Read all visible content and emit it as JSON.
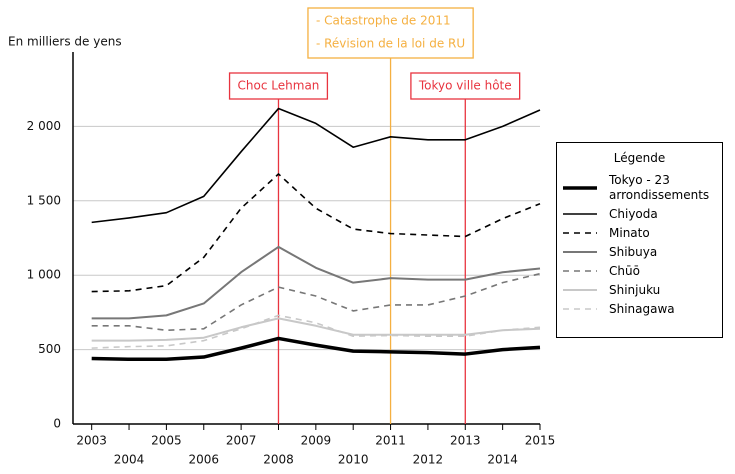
{
  "chart_data": {
    "type": "line",
    "y_label": "En milliers de yens",
    "x": [
      2003,
      2004,
      2005,
      2006,
      2007,
      2008,
      2009,
      2010,
      2011,
      2012,
      2013,
      2014,
      2015
    ],
    "series": [
      {
        "name": "Tokyo - 23 arrondissements",
        "color": "#000000",
        "width": 3.5,
        "dashed": false,
        "values": [
          440,
          435,
          435,
          450,
          510,
          575,
          530,
          490,
          485,
          480,
          470,
          500,
          515
        ]
      },
      {
        "name": "Chiyoda",
        "color": "#000000",
        "width": 1.6,
        "dashed": false,
        "values": [
          1355,
          1385,
          1420,
          1530,
          1830,
          2120,
          2020,
          1860,
          1930,
          1910,
          1910,
          2000,
          2110
        ]
      },
      {
        "name": "Minato",
        "color": "#000000",
        "width": 1.6,
        "dashed": true,
        "values": [
          890,
          895,
          930,
          1120,
          1450,
          1680,
          1450,
          1310,
          1280,
          1270,
          1260,
          1380,
          1480
        ]
      },
      {
        "name": "Shibuya",
        "color": "#777777",
        "width": 2,
        "dashed": false,
        "values": [
          710,
          710,
          730,
          810,
          1020,
          1190,
          1050,
          950,
          980,
          970,
          970,
          1020,
          1045
        ]
      },
      {
        "name": "Chūō",
        "color": "#777777",
        "width": 1.6,
        "dashed": true,
        "values": [
          660,
          660,
          630,
          640,
          800,
          920,
          860,
          760,
          800,
          800,
          860,
          950,
          1010
        ]
      },
      {
        "name": "Shinjuku",
        "color": "#c8c8c8",
        "width": 2,
        "dashed": false,
        "values": [
          560,
          560,
          565,
          580,
          650,
          710,
          660,
          600,
          600,
          600,
          600,
          630,
          640
        ]
      },
      {
        "name": "Shinagawa",
        "color": "#c8c8c8",
        "width": 1.6,
        "dashed": true,
        "values": [
          510,
          520,
          525,
          560,
          640,
          730,
          680,
          590,
          595,
          590,
          590,
          630,
          650
        ]
      }
    ],
    "xlim": [
      2002.5,
      2015
    ],
    "ylim": [
      0,
      2500
    ],
    "xticks": [
      2003,
      2004,
      2005,
      2006,
      2007,
      2008,
      2009,
      2010,
      2011,
      2012,
      2013,
      2014,
      2015
    ],
    "yticks": [
      0,
      500,
      {
        "value": 1000,
        "label": "1 000"
      },
      {
        "value": 1500,
        "label": "1 500"
      },
      {
        "value": 2000,
        "label": "2 000"
      }
    ],
    "grid": true,
    "legend_title": "Légende",
    "annotations": [
      {
        "x": 2008,
        "text": "Choc Lehman",
        "color": "#e8343f"
      },
      {
        "x": 2011,
        "text": [
          "- Catastrophe de 2011",
          "- Révision de la loi de RU"
        ],
        "color": "#f5b041"
      },
      {
        "x": 2013,
        "text": "Tokyo ville hôte",
        "color": "#e8343f"
      }
    ]
  }
}
